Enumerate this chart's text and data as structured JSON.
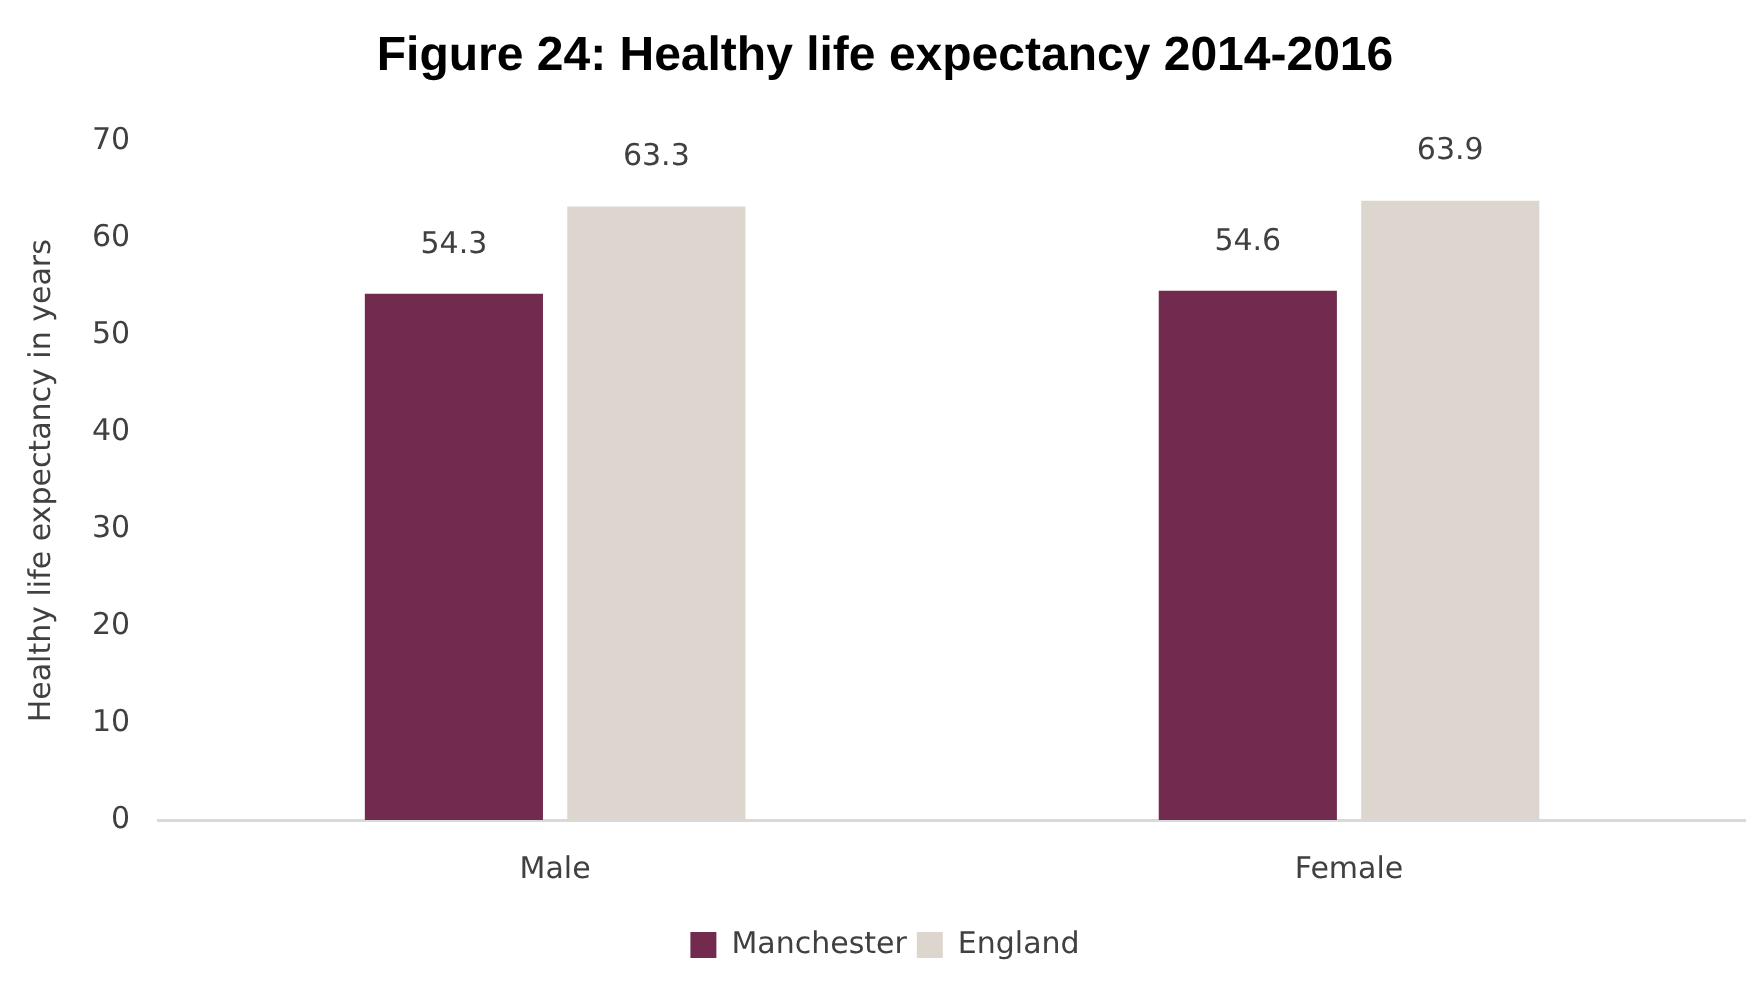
{
  "chart_data": {
    "type": "bar",
    "title": "Figure 24: Healthy life expectancy 2014-2016",
    "ylabel": "Healthy life expectancy in years",
    "categories": [
      "Male",
      "Female"
    ],
    "series": [
      {
        "name": "Manchester",
        "color": "#722b4e",
        "values": [
          54.3,
          54.6
        ]
      },
      {
        "name": "England",
        "color": "#ddd6ce",
        "values": [
          63.3,
          63.9
        ]
      }
    ],
    "ylim": [
      0,
      70
    ],
    "yticks": [
      0,
      10,
      20,
      30,
      40,
      50,
      60,
      70
    ],
    "grid": false,
    "legend": "bottom",
    "data_labels": true
  }
}
